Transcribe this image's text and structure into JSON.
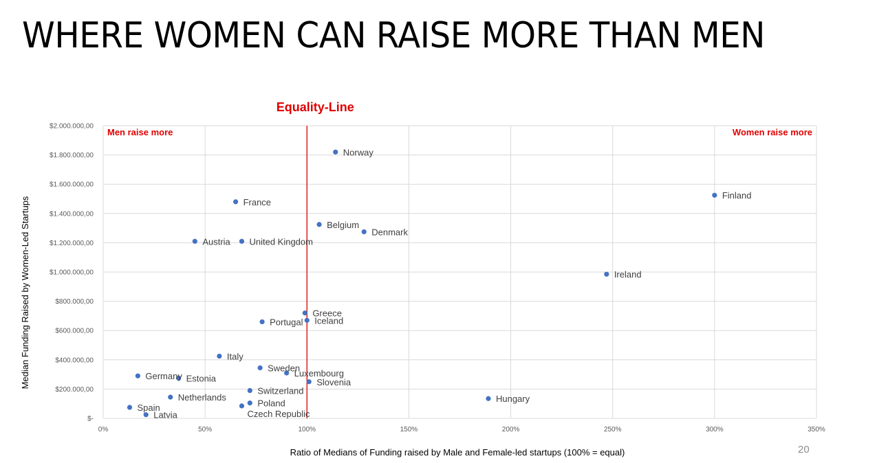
{
  "slide": {
    "title": "WHERE WOMEN CAN RAISE MORE THAN MEN",
    "page_number": "20"
  },
  "chart_data": {
    "type": "scatter",
    "xlabel": "Ratio of Medians of Funding raised by Male and Female-led startups (100% = equal)",
    "ylabel": "Median Funding Raised by Women-Led Startups",
    "xlim": [
      0,
      350
    ],
    "ylim": [
      0,
      2000000
    ],
    "x_ticks": [
      {
        "value": 0,
        "label": "0%"
      },
      {
        "value": 50,
        "label": "50%"
      },
      {
        "value": 100,
        "label": "100%"
      },
      {
        "value": 150,
        "label": "150%"
      },
      {
        "value": 200,
        "label": "200%"
      },
      {
        "value": 250,
        "label": "250%"
      },
      {
        "value": 300,
        "label": "300%"
      },
      {
        "value": 350,
        "label": "350%"
      }
    ],
    "y_ticks": [
      {
        "value": 0,
        "label": "$-"
      },
      {
        "value": 200000,
        "label": "$200.000,00"
      },
      {
        "value": 400000,
        "label": "$400.000,00"
      },
      {
        "value": 600000,
        "label": "$600.000,00"
      },
      {
        "value": 800000,
        "label": "$800.000,00"
      },
      {
        "value": 1000000,
        "label": "$1.000.000,00"
      },
      {
        "value": 1200000,
        "label": "$1.200.000,00"
      },
      {
        "value": 1400000,
        "label": "$1.400.000,00"
      },
      {
        "value": 1600000,
        "label": "$1.600.000,00"
      },
      {
        "value": 1800000,
        "label": "$1.800.000,00"
      },
      {
        "value": 2000000,
        "label": "$2.000.000,00"
      }
    ],
    "grid": true,
    "point_color": "#4472c4",
    "equality_line": {
      "x": 100,
      "label": "Equality-Line",
      "color": "#e00000"
    },
    "annotations": [
      {
        "text": "Men raise more",
        "position": "top-left"
      },
      {
        "text": "Women raise more",
        "position": "top-right"
      }
    ],
    "points": [
      {
        "label": "Norway",
        "x": 114,
        "y": 1820000
      },
      {
        "label": "France",
        "x": 65,
        "y": 1480000
      },
      {
        "label": "Belgium",
        "x": 106,
        "y": 1325000
      },
      {
        "label": "Denmark",
        "x": 128,
        "y": 1275000
      },
      {
        "label": "Austria",
        "x": 45,
        "y": 1210000
      },
      {
        "label": "United Kingdom",
        "x": 68,
        "y": 1210000
      },
      {
        "label": "Finland",
        "x": 300,
        "y": 1525000
      },
      {
        "label": "Ireland",
        "x": 247,
        "y": 985000
      },
      {
        "label": "Greece",
        "x": 99,
        "y": 720000
      },
      {
        "label": "Iceland",
        "x": 100,
        "y": 670000
      },
      {
        "label": "Portugal",
        "x": 78,
        "y": 660000
      },
      {
        "label": "Italy",
        "x": 57,
        "y": 425000
      },
      {
        "label": "Sweden",
        "x": 77,
        "y": 345000
      },
      {
        "label": "Luxembourg",
        "x": 90,
        "y": 310000
      },
      {
        "label": "Slovenia",
        "x": 101,
        "y": 250000
      },
      {
        "label": "Germany",
        "x": 17,
        "y": 290000
      },
      {
        "label": "Estonia",
        "x": 37,
        "y": 275000
      },
      {
        "label": "Switzerland",
        "x": 72,
        "y": 190000
      },
      {
        "label": "Netherlands",
        "x": 33,
        "y": 145000
      },
      {
        "label": "Poland",
        "x": 72,
        "y": 105000
      },
      {
        "label": "Czech Republic",
        "x": 68,
        "y": 85000
      },
      {
        "label": "Spain",
        "x": 13,
        "y": 75000
      },
      {
        "label": "Latvia",
        "x": 21,
        "y": 25000
      },
      {
        "label": "Hungary",
        "x": 189,
        "y": 135000
      }
    ]
  }
}
